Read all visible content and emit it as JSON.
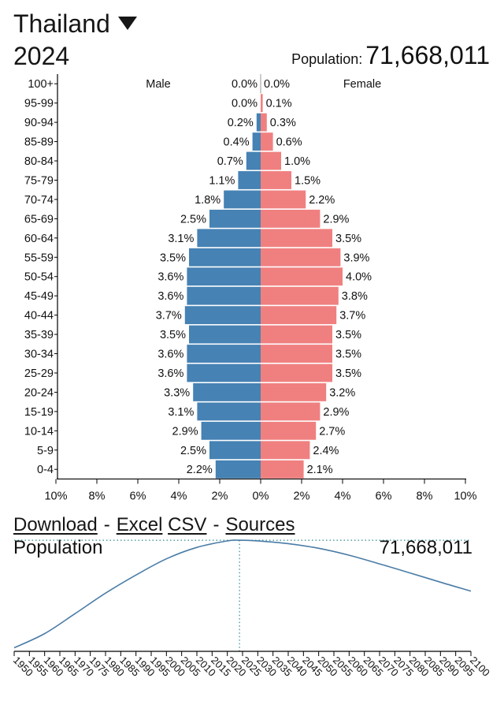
{
  "header": {
    "country": "Thailand",
    "year": "2024",
    "population_label": "Population:",
    "population_value": "71,668,011"
  },
  "colors": {
    "male": "#4682b4",
    "female": "#f08080",
    "axis": "#000000",
    "trend": "#4a7ca6",
    "guide": "#2e8b8b"
  },
  "chart_data": [
    {
      "type": "bar",
      "subtype": "population-pyramid",
      "series_labels": {
        "male": "Male",
        "female": "Female"
      },
      "categories": [
        "100+",
        "95-99",
        "90-94",
        "85-89",
        "80-84",
        "75-79",
        "70-74",
        "65-69",
        "60-64",
        "55-59",
        "50-54",
        "45-49",
        "40-44",
        "35-39",
        "30-34",
        "25-29",
        "20-24",
        "15-19",
        "10-14",
        "5-9",
        "0-4"
      ],
      "male": [
        0.0,
        0.0,
        0.2,
        0.4,
        0.7,
        1.1,
        1.8,
        2.5,
        3.1,
        3.5,
        3.6,
        3.6,
        3.7,
        3.5,
        3.6,
        3.6,
        3.3,
        3.1,
        2.9,
        2.5,
        2.2
      ],
      "female": [
        0.0,
        0.1,
        0.3,
        0.6,
        1.0,
        1.5,
        2.2,
        2.9,
        3.5,
        3.9,
        4.0,
        3.8,
        3.7,
        3.5,
        3.5,
        3.5,
        3.2,
        2.9,
        2.7,
        2.4,
        2.1
      ],
      "x_ticks": [
        "10%",
        "8%",
        "6%",
        "4%",
        "2%",
        "0%",
        "2%",
        "4%",
        "6%",
        "8%",
        "10%"
      ],
      "x_range_percent": 10,
      "unit": "%"
    },
    {
      "type": "line",
      "title": "Population",
      "current_value": "71,668,011",
      "current_year": 2024,
      "x_ticks": [
        1950,
        1955,
        1960,
        1965,
        1970,
        1975,
        1980,
        1985,
        1990,
        1995,
        2000,
        2005,
        2010,
        2015,
        2020,
        2025,
        2030,
        2035,
        2040,
        2045,
        2050,
        2055,
        2060,
        2065,
        2070,
        2075,
        2080,
        2085,
        2090,
        2095,
        2100
      ],
      "x": [
        1950,
        1960,
        1970,
        1980,
        1990,
        2000,
        2010,
        2020,
        2024,
        2030,
        2040,
        2050,
        2060,
        2070,
        2080,
        2090,
        2100
      ],
      "y": [
        20.7,
        27.4,
        36.9,
        46.6,
        55.2,
        62.9,
        68.3,
        71.4,
        71.7,
        71.4,
        70.1,
        67.9,
        64.6,
        60.5,
        56.2,
        51.8,
        47.6
      ],
      "ylim": [
        19,
        72.5
      ],
      "y_unit": "millions"
    }
  ],
  "links": {
    "download": "Download",
    "sep1": "-",
    "excel": "Excel",
    "csv": "CSV",
    "sep2": "-",
    "sources": "Sources"
  }
}
